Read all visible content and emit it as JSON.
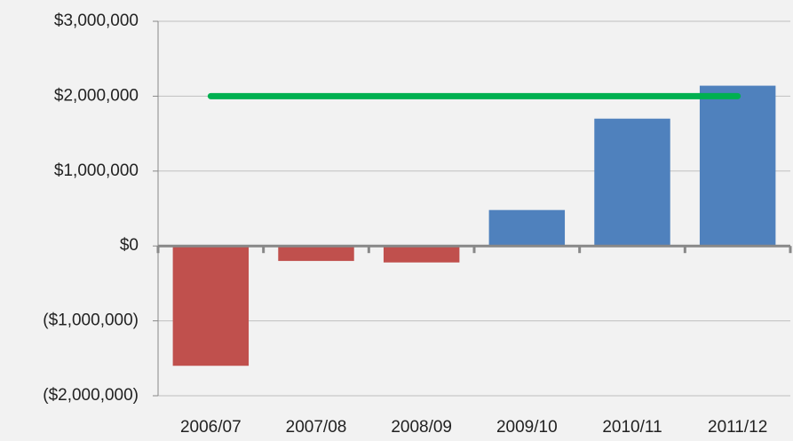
{
  "chart_data": {
    "type": "bar",
    "categories": [
      "2006/07",
      "2007/08",
      "2008/09",
      "2009/10",
      "2010/11",
      "2011/12"
    ],
    "series": [
      {
        "type": "bar",
        "values": [
          -1600000,
          -200000,
          -220000,
          480000,
          1700000,
          2140000
        ],
        "positive_color": "#4f81bd",
        "negative_color": "#c0504d"
      },
      {
        "type": "line",
        "values": [
          2000000,
          2000000,
          2000000,
          2000000,
          2000000,
          2000000
        ],
        "color": "#00b050"
      }
    ],
    "ylim": [
      -2000000,
      3000000
    ],
    "yticks": [
      {
        "value": -2000000,
        "label": "($2,000,000)"
      },
      {
        "value": -1000000,
        "label": "($1,000,000)"
      },
      {
        "value": 0,
        "label": "$0"
      },
      {
        "value": 1000000,
        "label": "$1,000,000"
      },
      {
        "value": 2000000,
        "label": "$2,000,000"
      },
      {
        "value": 3000000,
        "label": "$3,000,000"
      }
    ],
    "grid": true
  }
}
